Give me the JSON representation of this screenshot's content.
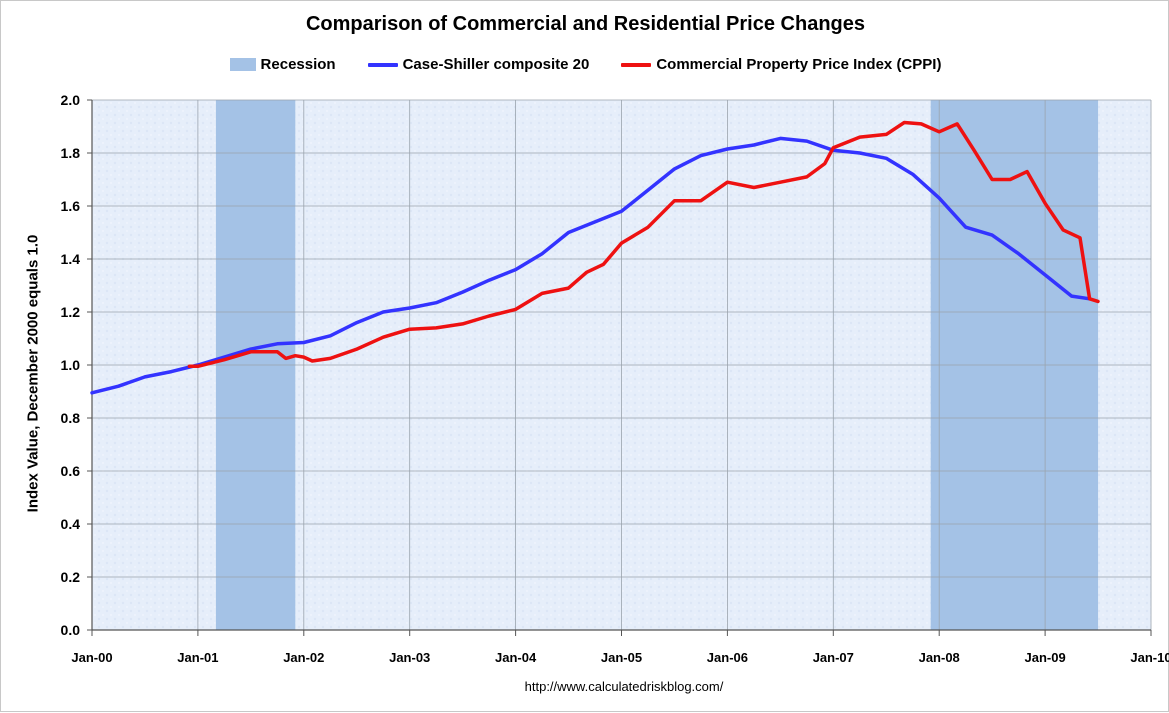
{
  "chart_data": {
    "type": "line",
    "title": "Comparison of Commercial and Residential Price Changes",
    "xlabel": "",
    "ylabel": "Index Value, December 2000 equals 1.0",
    "x_ticks": [
      "Jan-00",
      "Jan-01",
      "Jan-02",
      "Jan-03",
      "Jan-04",
      "Jan-05",
      "Jan-06",
      "Jan-07",
      "Jan-08",
      "Jan-09",
      "Jan-10"
    ],
    "x_range_years": [
      2000.0,
      2010.0
    ],
    "ylim": [
      0.0,
      2.0
    ],
    "y_ticks": [
      "0.0",
      "0.2",
      "0.4",
      "0.6",
      "0.8",
      "1.0",
      "1.2",
      "1.4",
      "1.6",
      "1.8",
      "2.0"
    ],
    "grid": true,
    "legend_position": "top",
    "recessions": [
      {
        "start": 2001.17,
        "end": 2001.92
      },
      {
        "start": 2007.92,
        "end": 2009.5
      }
    ],
    "series": [
      {
        "name": "Recession",
        "kind": "area",
        "color": "#a4c2e6"
      },
      {
        "name": "Case-Shiller composite 20",
        "kind": "line",
        "color": "#3333ff",
        "points": [
          [
            2000.0,
            0.895
          ],
          [
            2000.25,
            0.92
          ],
          [
            2000.5,
            0.955
          ],
          [
            2000.75,
            0.975
          ],
          [
            2001.0,
            1.0
          ],
          [
            2001.25,
            1.03
          ],
          [
            2001.5,
            1.06
          ],
          [
            2001.75,
            1.08
          ],
          [
            2002.0,
            1.085
          ],
          [
            2002.25,
            1.11
          ],
          [
            2002.5,
            1.16
          ],
          [
            2002.75,
            1.2
          ],
          [
            2003.0,
            1.215
          ],
          [
            2003.25,
            1.235
          ],
          [
            2003.5,
            1.275
          ],
          [
            2003.75,
            1.32
          ],
          [
            2004.0,
            1.36
          ],
          [
            2004.25,
            1.42
          ],
          [
            2004.5,
            1.5
          ],
          [
            2004.75,
            1.54
          ],
          [
            2005.0,
            1.58
          ],
          [
            2005.25,
            1.66
          ],
          [
            2005.5,
            1.74
          ],
          [
            2005.75,
            1.79
          ],
          [
            2006.0,
            1.815
          ],
          [
            2006.25,
            1.83
          ],
          [
            2006.5,
            1.855
          ],
          [
            2006.75,
            1.845
          ],
          [
            2007.0,
            1.81
          ],
          [
            2007.25,
            1.8
          ],
          [
            2007.5,
            1.78
          ],
          [
            2007.75,
            1.72
          ],
          [
            2008.0,
            1.63
          ],
          [
            2008.25,
            1.52
          ],
          [
            2008.5,
            1.49
          ],
          [
            2008.75,
            1.42
          ],
          [
            2009.0,
            1.34
          ],
          [
            2009.25,
            1.26
          ],
          [
            2009.42,
            1.25
          ]
        ]
      },
      {
        "name": "Commercial Property Price Index (CPPI)",
        "kind": "line",
        "color": "#ee1111",
        "points": [
          [
            2000.92,
            0.995
          ],
          [
            2001.0,
            0.995
          ],
          [
            2001.25,
            1.02
          ],
          [
            2001.5,
            1.05
          ],
          [
            2001.75,
            1.05
          ],
          [
            2001.83,
            1.025
          ],
          [
            2001.92,
            1.035
          ],
          [
            2002.0,
            1.03
          ],
          [
            2002.08,
            1.015
          ],
          [
            2002.25,
            1.025
          ],
          [
            2002.5,
            1.06
          ],
          [
            2002.75,
            1.105
          ],
          [
            2003.0,
            1.135
          ],
          [
            2003.25,
            1.14
          ],
          [
            2003.5,
            1.155
          ],
          [
            2003.75,
            1.185
          ],
          [
            2004.0,
            1.21
          ],
          [
            2004.25,
            1.27
          ],
          [
            2004.5,
            1.29
          ],
          [
            2004.67,
            1.35
          ],
          [
            2004.83,
            1.38
          ],
          [
            2005.0,
            1.46
          ],
          [
            2005.25,
            1.52
          ],
          [
            2005.5,
            1.62
          ],
          [
            2005.75,
            1.62
          ],
          [
            2006.0,
            1.69
          ],
          [
            2006.25,
            1.67
          ],
          [
            2006.5,
            1.69
          ],
          [
            2006.75,
            1.71
          ],
          [
            2006.92,
            1.76
          ],
          [
            2007.0,
            1.82
          ],
          [
            2007.25,
            1.86
          ],
          [
            2007.5,
            1.87
          ],
          [
            2007.67,
            1.915
          ],
          [
            2007.83,
            1.91
          ],
          [
            2008.0,
            1.88
          ],
          [
            2008.17,
            1.91
          ],
          [
            2008.33,
            1.81
          ],
          [
            2008.5,
            1.7
          ],
          [
            2008.67,
            1.7
          ],
          [
            2008.83,
            1.73
          ],
          [
            2009.0,
            1.61
          ],
          [
            2009.17,
            1.51
          ],
          [
            2009.33,
            1.48
          ],
          [
            2009.42,
            1.25
          ],
          [
            2009.5,
            1.24
          ]
        ]
      }
    ]
  },
  "source_url": "http://www.calculatedriskblog.com/"
}
